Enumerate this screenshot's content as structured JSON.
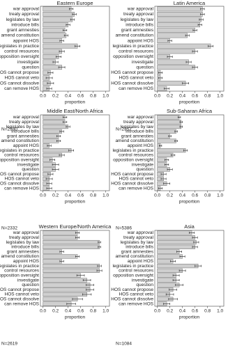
{
  "chart_data": [
    {
      "type": "hbar_error",
      "title": "Eastern Europe",
      "note": "N=2590",
      "xlabel": "proportion",
      "categories": [
        "war approval",
        "treaty approval",
        "legislates by law",
        "introduce bills",
        "grant amnesties",
        "amend constitution",
        "appoint HOS",
        "legislates in practice",
        "control resources",
        "opposition oversight",
        "investigate",
        "question",
        "HOS cannot propose",
        "HOS cannot veto",
        "HOS cannot dissolve",
        "can remove HOS"
      ],
      "values": [
        0.45,
        0.5,
        0.47,
        0.4,
        0.35,
        0.37,
        0.3,
        0.55,
        0.3,
        0.25,
        0.2,
        0.3,
        0.12,
        0.1,
        0.12,
        0.1
      ],
      "errors": [
        0.03,
        0.03,
        0.03,
        0.03,
        0.03,
        0.03,
        0.03,
        0.04,
        0.04,
        0.04,
        0.04,
        0.05,
        0.04,
        0.05,
        0.05,
        0.04
      ],
      "color": "#cfcfcf",
      "xlim": [
        -0.04,
        1.06
      ],
      "xticks": [
        {
          "value": 0,
          "label": "0.0"
        },
        {
          "value": 0.2,
          "label": "0.2"
        },
        {
          "value": 0.4,
          "label": "0.4"
        },
        {
          "value": 0.6,
          "label": "0.6"
        },
        {
          "value": 0.8,
          "label": "0.8"
        },
        {
          "value": 1,
          "label": "1.0"
        }
      ]
    },
    {
      "type": "hbar_error",
      "title": "Latin America",
      "note": "N=2357",
      "xlabel": "proportion",
      "categories": [
        "war approval",
        "treaty approval",
        "legislates by law",
        "introduce bills",
        "grant amnesties",
        "amend constitution",
        "appoint HOS",
        "legislates in practice",
        "control resources",
        "opposition oversight",
        "investigate",
        "question",
        "HOS cannot propose",
        "HOS cannot veto",
        "HOS cannot dissolve",
        "can remove HOS"
      ],
      "values": [
        0.72,
        0.72,
        0.7,
        0.68,
        0.6,
        0.48,
        0.2,
        0.85,
        0.6,
        0.2,
        0.5,
        0.6,
        0.05,
        0.05,
        0.45,
        0.15
      ],
      "errors": [
        0.03,
        0.03,
        0.03,
        0.03,
        0.03,
        0.03,
        0.03,
        0.04,
        0.04,
        0.04,
        0.04,
        0.04,
        0.03,
        0.03,
        0.05,
        0.04
      ],
      "color": "#cfcfcf",
      "xlim": [
        -0.04,
        1.06
      ],
      "xticks": [
        {
          "value": 0,
          "label": "0.0"
        },
        {
          "value": 0.2,
          "label": "0.2"
        },
        {
          "value": 0.4,
          "label": "0.4"
        },
        {
          "value": 0.6,
          "label": "0.6"
        },
        {
          "value": 0.8,
          "label": "0.8"
        },
        {
          "value": 1,
          "label": "1.0"
        }
      ]
    },
    {
      "type": "hbar_error",
      "title": "Middle East/North Africa",
      "note": "N=2332",
      "xlabel": "proportion",
      "categories": [
        "war approval",
        "treaty approval",
        "legislates by law",
        "introduce bills",
        "grant amnesties",
        "amend constitution",
        "appoint HOS",
        "legislates in practice",
        "control resources",
        "opposition oversight",
        "investigate",
        "question",
        "HOS cannot propose",
        "HOS cannot veto",
        "HOS cannot dissolve",
        "can remove HOS"
      ],
      "values": [
        0.35,
        0.35,
        0.4,
        0.3,
        0.25,
        0.25,
        0.1,
        0.45,
        0.3,
        0.15,
        0.2,
        0.2,
        0.12,
        0.1,
        0.1,
        0.1
      ],
      "errors": [
        0.03,
        0.03,
        0.03,
        0.03,
        0.03,
        0.03,
        0.03,
        0.04,
        0.04,
        0.04,
        0.05,
        0.05,
        0.04,
        0.05,
        0.04,
        0.04
      ],
      "color": "#cfcfcf",
      "xlim": [
        -0.04,
        1.06
      ],
      "xticks": [
        {
          "value": 0,
          "label": "0.0"
        },
        {
          "value": 0.2,
          "label": "0.2"
        },
        {
          "value": 0.4,
          "label": "0.4"
        },
        {
          "value": 0.6,
          "label": "0.6"
        },
        {
          "value": 0.8,
          "label": "0.8"
        },
        {
          "value": 1,
          "label": "1.0"
        }
      ]
    },
    {
      "type": "hbar_error",
      "title": "Sub-Saharan Africa",
      "note": "N=5386",
      "xlabel": "proportion",
      "categories": [
        "war approval",
        "treaty approval",
        "legislates by law",
        "introduce bills",
        "grant amnesties",
        "amend constitution",
        "appoint HOS",
        "legislates in practice",
        "control resources",
        "opposition oversight",
        "investigate",
        "question",
        "HOS cannot propose",
        "HOS cannot veto",
        "HOS cannot dissolve",
        "can remove HOS"
      ],
      "values": [
        0.35,
        0.38,
        0.38,
        0.3,
        0.2,
        0.3,
        0.05,
        0.45,
        0.25,
        0.15,
        0.15,
        0.2,
        0.1,
        0.1,
        0.15,
        0.05
      ],
      "errors": [
        0.02,
        0.02,
        0.02,
        0.02,
        0.02,
        0.02,
        0.02,
        0.03,
        0.03,
        0.03,
        0.03,
        0.04,
        0.04,
        0.04,
        0.05,
        0.03
      ],
      "color": "#cfcfcf",
      "xlim": [
        -0.04,
        1.06
      ],
      "xticks": [
        {
          "value": 0,
          "label": "0.0"
        },
        {
          "value": 0.2,
          "label": "0.2"
        },
        {
          "value": 0.4,
          "label": "0.4"
        },
        {
          "value": 0.6,
          "label": "0.6"
        },
        {
          "value": 0.8,
          "label": "0.8"
        },
        {
          "value": 1,
          "label": "1.0"
        }
      ]
    },
    {
      "type": "hbar_error",
      "title": "Western Europe/North America",
      "note": "N=2619",
      "xlabel": "proportion",
      "categories": [
        "war approval",
        "treaty approval",
        "legislates by law",
        "introduce bills",
        "grant amnesties",
        "amend constitution",
        "appoint HOS",
        "legislates in practice",
        "control resources",
        "opposition oversight",
        "investigate",
        "question",
        "HOS cannot propose",
        "HOS cannot veto",
        "HOS cannot dissolve",
        "can remove HOS"
      ],
      "values": [
        0.55,
        0.55,
        0.9,
        0.9,
        0.3,
        0.55,
        0.3,
        0.9,
        0.9,
        0.6,
        0.7,
        0.75,
        0.75,
        0.7,
        0.55,
        0.45
      ],
      "errors": [
        0.03,
        0.03,
        0.02,
        0.02,
        0.03,
        0.03,
        0.03,
        0.03,
        0.04,
        0.06,
        0.06,
        0.06,
        0.06,
        0.07,
        0.08,
        0.07
      ],
      "color": "#cfcfcf",
      "xlim": [
        -0.04,
        1.06
      ],
      "xticks": [
        {
          "value": 0,
          "label": "0.0"
        },
        {
          "value": 0.2,
          "label": "0.2"
        },
        {
          "value": 0.4,
          "label": "0.4"
        },
        {
          "value": 0.6,
          "label": "0.6"
        },
        {
          "value": 0.8,
          "label": "0.8"
        },
        {
          "value": 1,
          "label": "1.0"
        }
      ]
    },
    {
      "type": "hbar_error",
      "title": "Asia",
      "note": "N=1084",
      "xlabel": "proportion",
      "categories": [
        "war approval",
        "treaty approval",
        "legislates by law",
        "introduce bills",
        "grant amnesties",
        "amend constitution",
        "appoint HOS",
        "legislates in practice",
        "control resources",
        "opposition oversight",
        "investigate",
        "question",
        "HOS cannot propose",
        "HOS cannot veto",
        "HOS cannot dissolve",
        "can remove HOS"
      ],
      "values": [
        0.55,
        0.6,
        0.62,
        0.6,
        0.35,
        0.4,
        0.25,
        0.65,
        0.4,
        0.3,
        0.3,
        0.35,
        0.25,
        0.2,
        0.25,
        0.15
      ],
      "errors": [
        0.04,
        0.04,
        0.04,
        0.04,
        0.04,
        0.04,
        0.04,
        0.05,
        0.05,
        0.05,
        0.05,
        0.06,
        0.06,
        0.06,
        0.07,
        0.05
      ],
      "color": "#cfcfcf",
      "xlim": [
        -0.04,
        1.06
      ],
      "xticks": [
        {
          "value": 0,
          "label": "0.0"
        },
        {
          "value": 0.2,
          "label": "0.2"
        },
        {
          "value": 0.4,
          "label": "0.4"
        },
        {
          "value": 0.6,
          "label": "0.6"
        },
        {
          "value": 0.8,
          "label": "0.8"
        },
        {
          "value": 1,
          "label": "1.0"
        }
      ]
    }
  ]
}
